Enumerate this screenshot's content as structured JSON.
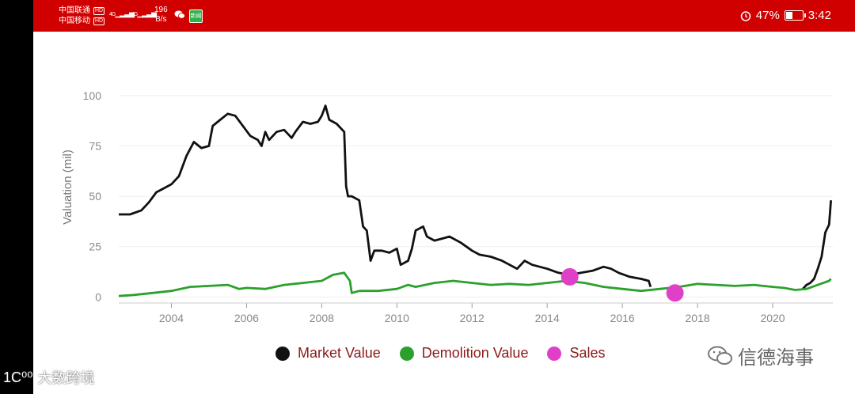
{
  "status_bar": {
    "carrier1": "中国联通",
    "carrier2": "中国移动",
    "hd_badge": "HD",
    "signal_tag": "4G",
    "net_speed_value": "196",
    "net_speed_unit": "B/s",
    "news_badge": "新闻",
    "battery_text": "47%",
    "battery_level": 0.47,
    "time": "3:42",
    "icons": [
      "alarm-icon",
      "battery-icon",
      "wechat-icon",
      "signal-icon"
    ]
  },
  "watermark": {
    "text": "信德海事",
    "bottom_mark": "大数跨境",
    "bottom_prefix": "1C⁰⁰"
  },
  "chart_data": {
    "type": "line",
    "ylabel": "Valuation (mil)",
    "xlabel": "",
    "xlim": [
      2002.6,
      2021.6
    ],
    "ylim": [
      -3,
      120
    ],
    "x_ticks": [
      2004,
      2006,
      2008,
      2010,
      2012,
      2014,
      2016,
      2018,
      2020
    ],
    "y_ticks": [
      0,
      25,
      50,
      75,
      100
    ],
    "grid": true,
    "legend_position": "bottom",
    "series": [
      {
        "name": "Market Value",
        "color": "#111111",
        "type": "line",
        "points": [
          [
            2002.6,
            41
          ],
          [
            2002.9,
            41
          ],
          [
            2003.2,
            43
          ],
          [
            2003.4,
            47
          ],
          [
            2003.6,
            52
          ],
          [
            2003.8,
            54
          ],
          [
            2004.0,
            56
          ],
          [
            2004.2,
            60
          ],
          [
            2004.4,
            70
          ],
          [
            2004.6,
            77
          ],
          [
            2004.8,
            74
          ],
          [
            2005.0,
            75
          ],
          [
            2005.1,
            85
          ],
          [
            2005.3,
            88
          ],
          [
            2005.5,
            91
          ],
          [
            2005.7,
            90
          ],
          [
            2005.9,
            85
          ],
          [
            2006.1,
            80
          ],
          [
            2006.3,
            78
          ],
          [
            2006.4,
            75
          ],
          [
            2006.5,
            82
          ],
          [
            2006.6,
            78
          ],
          [
            2006.8,
            82
          ],
          [
            2007.0,
            83
          ],
          [
            2007.2,
            79
          ],
          [
            2007.3,
            82
          ],
          [
            2007.5,
            87
          ],
          [
            2007.7,
            86
          ],
          [
            2007.9,
            87
          ],
          [
            2008.0,
            90
          ],
          [
            2008.1,
            95
          ],
          [
            2008.2,
            88
          ],
          [
            2008.4,
            86
          ],
          [
            2008.6,
            82
          ],
          [
            2008.65,
            55
          ],
          [
            2008.7,
            50
          ],
          [
            2008.8,
            50
          ],
          [
            2009.0,
            48
          ],
          [
            2009.1,
            35
          ],
          [
            2009.2,
            33
          ],
          [
            2009.3,
            18
          ],
          [
            2009.4,
            23
          ],
          [
            2009.6,
            23
          ],
          [
            2009.8,
            22
          ],
          [
            2010.0,
            24
          ],
          [
            2010.1,
            16
          ],
          [
            2010.3,
            18
          ],
          [
            2010.4,
            24
          ],
          [
            2010.5,
            33
          ],
          [
            2010.7,
            35
          ],
          [
            2010.8,
            30
          ],
          [
            2011.0,
            28
          ],
          [
            2011.2,
            29
          ],
          [
            2011.4,
            30
          ],
          [
            2011.7,
            27
          ],
          [
            2012.0,
            23
          ],
          [
            2012.2,
            21
          ],
          [
            2012.5,
            20
          ],
          [
            2012.8,
            18
          ],
          [
            2013.0,
            16
          ],
          [
            2013.2,
            14
          ],
          [
            2013.4,
            18
          ],
          [
            2013.6,
            16
          ],
          [
            2013.8,
            15
          ],
          [
            2014.0,
            14
          ],
          [
            2014.3,
            12
          ],
          [
            2014.6,
            11
          ],
          [
            2014.9,
            12
          ],
          [
            2015.2,
            13
          ],
          [
            2015.5,
            15
          ],
          [
            2015.7,
            14
          ],
          [
            2015.9,
            12
          ],
          [
            2016.2,
            10
          ],
          [
            2016.5,
            9
          ],
          [
            2016.7,
            8
          ],
          [
            2016.75,
            5
          ]
        ],
        "points_2": [
          [
            2020.8,
            4
          ],
          [
            2020.9,
            6
          ],
          [
            2021.0,
            7
          ],
          [
            2021.1,
            9
          ],
          [
            2021.2,
            14
          ],
          [
            2021.3,
            20
          ],
          [
            2021.4,
            32
          ],
          [
            2021.5,
            36
          ],
          [
            2021.55,
            48
          ]
        ]
      },
      {
        "name": "Demolition Value",
        "color": "#2ca02c",
        "type": "line",
        "points": [
          [
            2002.6,
            0.5
          ],
          [
            2003.0,
            1
          ],
          [
            2003.5,
            2
          ],
          [
            2004.0,
            3
          ],
          [
            2004.5,
            5
          ],
          [
            2005.0,
            5.5
          ],
          [
            2005.5,
            6
          ],
          [
            2005.8,
            4
          ],
          [
            2006.0,
            4.5
          ],
          [
            2006.5,
            4
          ],
          [
            2007.0,
            6
          ],
          [
            2007.5,
            7
          ],
          [
            2008.0,
            8
          ],
          [
            2008.3,
            11
          ],
          [
            2008.6,
            12
          ],
          [
            2008.75,
            8
          ],
          [
            2008.8,
            2
          ],
          [
            2009.0,
            3
          ],
          [
            2009.5,
            3
          ],
          [
            2010.0,
            4
          ],
          [
            2010.3,
            6
          ],
          [
            2010.5,
            5
          ],
          [
            2011.0,
            7
          ],
          [
            2011.5,
            8
          ],
          [
            2012.0,
            7
          ],
          [
            2012.5,
            6
          ],
          [
            2013.0,
            6.5
          ],
          [
            2013.5,
            6
          ],
          [
            2014.0,
            7
          ],
          [
            2014.5,
            8
          ],
          [
            2015.0,
            7
          ],
          [
            2015.5,
            5
          ],
          [
            2016.0,
            4
          ],
          [
            2016.5,
            3
          ],
          [
            2017.0,
            4
          ],
          [
            2017.5,
            5
          ],
          [
            2018.0,
            6.5
          ],
          [
            2018.5,
            6
          ],
          [
            2019.0,
            5.5
          ],
          [
            2019.5,
            6
          ],
          [
            2020.0,
            5
          ],
          [
            2020.3,
            4.5
          ],
          [
            2020.6,
            3.5
          ],
          [
            2020.9,
            4
          ],
          [
            2021.2,
            6
          ],
          [
            2021.5,
            8
          ],
          [
            2021.55,
            9
          ]
        ]
      },
      {
        "name": "Sales",
        "color": "#e040c8",
        "type": "scatter",
        "points": [
          [
            2014.6,
            10
          ],
          [
            2017.4,
            2
          ]
        ]
      }
    ]
  }
}
